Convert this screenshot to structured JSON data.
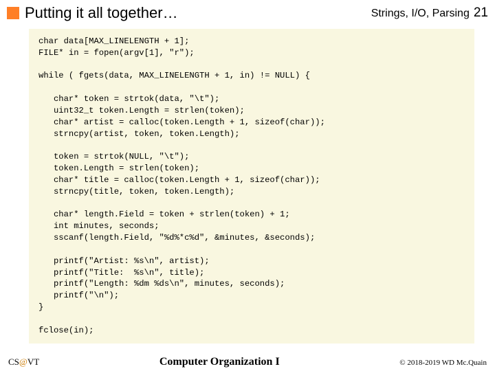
{
  "header": {
    "title": "Putting it all together…",
    "section": "Strings, I/O, Parsing",
    "page_number": "21"
  },
  "code": {
    "line1": "char data[MAX_LINELENGTH + 1];",
    "line2": "FILE* in = fopen(argv[1], \"r\");",
    "line3": "",
    "line4": "while ( fgets(data, MAX_LINELENGTH + 1, in) != NULL) {",
    "line5": "",
    "line6": "   char* token = strtok(data, \"\\t\");",
    "line7": "   uint32_t token.Length = strlen(token);",
    "line8": "   char* artist = calloc(token.Length + 1, sizeof(char));",
    "line9": "   strncpy(artist, token, token.Length);",
    "line10": "",
    "line11": "   token = strtok(NULL, \"\\t\");",
    "line12": "   token.Length = strlen(token);",
    "line13": "   char* title = calloc(token.Length + 1, sizeof(char));",
    "line14": "   strncpy(title, token, token.Length);",
    "line15": "",
    "line16": "   char* length.Field = token + strlen(token) + 1;",
    "line17": "   int minutes, seconds;",
    "line18": "   sscanf(length.Field, \"%d%*c%d\", &minutes, &seconds);",
    "line19": "",
    "line20": "   printf(\"Artist: %s\\n\", artist);",
    "line21": "   printf(\"Title:  %s\\n\", title);",
    "line22": "   printf(\"Length: %dm %ds\\n\", minutes, seconds);",
    "line23": "   printf(\"\\n\");",
    "line24": "}",
    "line25": "",
    "line26": "fclose(in);"
  },
  "footer": {
    "org_prefix": "CS",
    "org_at": "@",
    "org_suffix": "VT",
    "course": "Computer Organization I",
    "copyright": "© 2018-2019 WD Mc.Quain"
  },
  "colors": {
    "accent": "#ff7f27",
    "code_bg": "#f9f7e0",
    "at_color": "#cc7a00"
  }
}
